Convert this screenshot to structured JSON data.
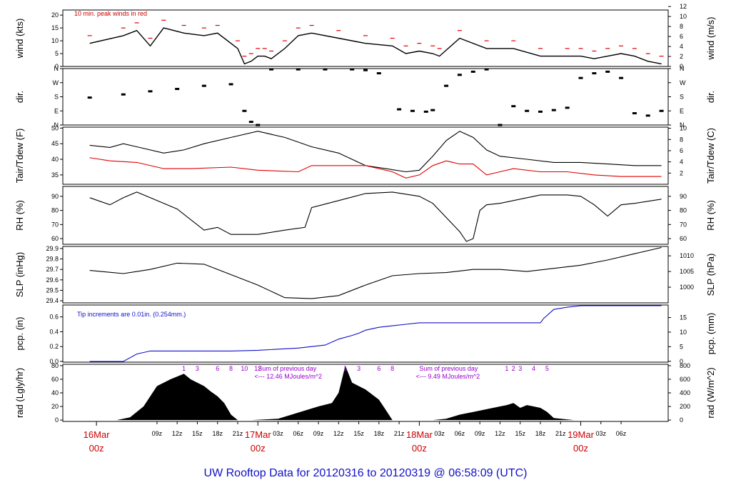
{
  "title": "UW Rooftop Data for 20120316  to  20120319 @ 06:58:09  (UTC)",
  "colors": {
    "black": "#000000",
    "red": "#e00000",
    "blue": "#1010c8",
    "purple": "#9900cc",
    "daylabel": "#cc0000"
  },
  "time_axis": {
    "tick_labels": [
      "09z",
      "12z",
      "15z",
      "18z",
      "21z",
      "03z",
      "06z",
      "09z",
      "12z",
      "15z",
      "18z",
      "21z",
      "03z",
      "06z",
      "09z",
      "12z",
      "15z",
      "18z",
      "21z",
      "03z",
      "06z"
    ],
    "day_labels": [
      {
        "top": "16Mar",
        "bottom": "00z",
        "hour": 0
      },
      {
        "top": "17Mar",
        "bottom": "00z",
        "hour": 24
      },
      {
        "top": "18Mar",
        "bottom": "00z",
        "hour": 48
      },
      {
        "top": "19Mar",
        "bottom": "00z",
        "hour": 72
      }
    ]
  },
  "chart_data": [
    {
      "type": "line",
      "panel": "wind",
      "ylabel_left": "wind (kts)",
      "ylabel_right": "wind (m/s)",
      "left_ticks": [
        0,
        5,
        10,
        15,
        20
      ],
      "right_ticks": [
        0,
        2,
        4,
        6,
        8,
        10,
        12
      ],
      "annotation": "10 min. peak winds in red",
      "series": [
        {
          "name": "wind",
          "color": "#000000"
        },
        {
          "name": "peak",
          "color": "#e00000"
        }
      ],
      "x_hours": [
        -1,
        4,
        6,
        8,
        10,
        13,
        16,
        18,
        21,
        22,
        23,
        24,
        25,
        26,
        28,
        30,
        32,
        36,
        40,
        44,
        46,
        48,
        50,
        51,
        54,
        58,
        62,
        66,
        70,
        72,
        74,
        76,
        78,
        80,
        82,
        84
      ],
      "y": [
        9,
        12,
        14,
        8,
        15,
        13,
        12,
        13,
        7,
        1,
        2,
        4,
        4,
        3,
        7,
        12,
        13,
        11,
        9,
        8,
        5,
        6,
        5,
        4,
        11,
        7,
        7,
        4,
        4,
        4,
        3,
        4,
        5,
        4,
        2,
        1
      ]
    },
    {
      "type": "scatter",
      "panel": "dir",
      "ylabel_left": "dir.",
      "ylabel_right": "dir.",
      "left_ticks": [
        "N",
        "E",
        "S",
        "W",
        "N"
      ],
      "right_ticks": [
        "N",
        "E",
        "S",
        "W",
        "N"
      ],
      "x_hours": [
        -1,
        4,
        8,
        12,
        16,
        20,
        22,
        23,
        24,
        26,
        30,
        34,
        38,
        40,
        42,
        45,
        47,
        49,
        50,
        52,
        54,
        56,
        58,
        60,
        62,
        64,
        66,
        68,
        70,
        72,
        74,
        76,
        78,
        80,
        82,
        84
      ],
      "y": [
        175,
        195,
        215,
        230,
        250,
        260,
        90,
        20,
        0,
        355,
        355,
        355,
        355,
        350,
        330,
        100,
        90,
        85,
        95,
        250,
        320,
        340,
        355,
        0,
        120,
        90,
        85,
        95,
        110,
        300,
        330,
        340,
        300,
        75,
        60,
        90
      ]
    },
    {
      "type": "line",
      "panel": "tair_tdew",
      "ylabel_left": "Tair/Tdew (F)",
      "ylabel_right": "Tair/Tdew (C)",
      "left_ticks": [
        35,
        40,
        45,
        50
      ],
      "right_ticks": [
        2,
        4,
        6,
        8,
        10
      ],
      "series": [
        {
          "name": "Tair",
          "color": "#000000",
          "x_hours": [
            -1,
            2,
            4,
            6,
            10,
            13,
            16,
            20,
            24,
            28,
            32,
            36,
            40,
            43,
            46,
            48,
            50,
            52,
            54,
            56,
            58,
            60,
            64,
            68,
            72,
            76,
            80,
            84
          ],
          "y": [
            44.5,
            43.8,
            45,
            44,
            42,
            43,
            45,
            47,
            49,
            47,
            44,
            42,
            38,
            37,
            36,
            36.5,
            41,
            46,
            49,
            47,
            43,
            41,
            40,
            39,
            39,
            38.5,
            38,
            38
          ]
        },
        {
          "name": "Tdew",
          "color": "#e00000",
          "x_hours": [
            -1,
            2,
            6,
            10,
            14,
            20,
            24,
            30,
            32,
            36,
            40,
            44,
            46,
            48,
            50,
            52,
            54,
            56,
            58,
            60,
            62,
            66,
            70,
            74,
            78,
            80,
            84
          ],
          "y": [
            40.5,
            39.5,
            39,
            37,
            37,
            37.5,
            36.5,
            36,
            38,
            38,
            38,
            36,
            34,
            35,
            38,
            39.5,
            38.5,
            38.5,
            35,
            36,
            37,
            36,
            36,
            35,
            34.5,
            34.5,
            34.5
          ]
        }
      ]
    },
    {
      "type": "line",
      "panel": "rh",
      "ylabel_left": "RH (%)",
      "ylabel_right": "RH (%)",
      "left_ticks": [
        60,
        70,
        80,
        90
      ],
      "right_ticks": [
        60,
        70,
        80,
        90
      ],
      "x_hours": [
        -1,
        2,
        4,
        6,
        8,
        12,
        16,
        18,
        20,
        24,
        28,
        31,
        32,
        36,
        40,
        44,
        48,
        50,
        52,
        54,
        55,
        56,
        57,
        58,
        60,
        66,
        70,
        72,
        74,
        76,
        78,
        80,
        84
      ],
      "y": [
        89,
        84,
        89,
        93,
        89,
        81,
        66,
        68,
        63,
        63,
        66,
        68,
        82,
        87,
        92,
        93,
        90,
        85,
        75,
        65,
        58,
        60,
        80,
        84,
        85,
        91,
        91,
        90,
        84,
        76,
        84,
        85,
        88
      ]
    },
    {
      "type": "line",
      "panel": "slp",
      "ylabel_left": "SLP (inHg)",
      "ylabel_right": "SLP (hPa)",
      "left_ticks": [
        29.4,
        29.5,
        29.6,
        29.7,
        29.8,
        29.9
      ],
      "right_ticks": [
        1000,
        1005,
        1010
      ],
      "x_hours": [
        -1,
        4,
        8,
        12,
        16,
        20,
        24,
        28,
        32,
        36,
        40,
        44,
        48,
        52,
        56,
        60,
        64,
        68,
        72,
        76,
        80,
        84
      ],
      "y": [
        29.69,
        29.66,
        29.7,
        29.76,
        29.75,
        29.65,
        29.55,
        29.43,
        29.42,
        29.45,
        29.55,
        29.64,
        29.66,
        29.67,
        29.7,
        29.7,
        29.68,
        29.71,
        29.74,
        29.79,
        29.85,
        29.91
      ]
    },
    {
      "type": "line",
      "panel": "pcp",
      "ylabel_left": "pcp. (in)",
      "ylabel_right": "pcp. (mm)",
      "left_ticks": [
        0.0,
        0.2,
        0.4,
        0.6
      ],
      "right_ticks": [
        0,
        5,
        10,
        15
      ],
      "annotation": "Tip increments are 0.01in. (0.254mm.)",
      "series": [
        {
          "name": "pcp",
          "color": "#1010c8"
        }
      ],
      "x_hours": [
        -1,
        4,
        6,
        8,
        20,
        24,
        30,
        34,
        36,
        38,
        39,
        40,
        42,
        44,
        46,
        48,
        56,
        62,
        66,
        66.5,
        68,
        70,
        72,
        84
      ],
      "y": [
        0.0,
        0.0,
        0.1,
        0.14,
        0.14,
        0.15,
        0.18,
        0.22,
        0.3,
        0.35,
        0.38,
        0.42,
        0.46,
        0.48,
        0.5,
        0.52,
        0.52,
        0.52,
        0.52,
        0.58,
        0.7,
        0.73,
        0.75,
        0.75
      ]
    },
    {
      "type": "area",
      "panel": "rad",
      "ylabel_left": "rad (Lgly/hr)",
      "ylabel_right": "rad (W/m^2)",
      "left_ticks": [
        0,
        20,
        40,
        60,
        80
      ],
      "right_ticks": [
        0,
        200,
        400,
        600,
        800
      ],
      "annotations": [
        {
          "line1": "Sum of previous day",
          "line2": "<--- 12.46 MJoules/m^2"
        },
        {
          "line1": "Sum of previous day",
          "line2": "<--- 9.49 MJoules/m^2"
        }
      ],
      "hour_markers": [
        {
          "label": "1",
          "hour": 13
        },
        {
          "label": "3",
          "hour": 15
        },
        {
          "label": "6",
          "hour": 18
        },
        {
          "label": "8",
          "hour": 20
        },
        {
          "label": "10",
          "hour": 22
        },
        {
          "label": "12",
          "hour": 24
        },
        {
          "label": "1",
          "hour": 37
        },
        {
          "label": "3",
          "hour": 39
        },
        {
          "label": "6",
          "hour": 42
        },
        {
          "label": "8",
          "hour": 44
        },
        {
          "label": "1",
          "hour": 61
        },
        {
          "label": "2",
          "hour": 62
        },
        {
          "label": "3",
          "hour": 63
        },
        {
          "label": "4",
          "hour": 65
        },
        {
          "label": "5",
          "hour": 67
        }
      ],
      "x_hours": [
        -1,
        3,
        5,
        7,
        9,
        11,
        12,
        13,
        14,
        15,
        16,
        17,
        18,
        19,
        20,
        21,
        23,
        27,
        29,
        31,
        33,
        35,
        36,
        37,
        38,
        39,
        40,
        42,
        43,
        44,
        46,
        50,
        52,
        54,
        56,
        58,
        60,
        61,
        62,
        63,
        64,
        65,
        66,
        67,
        68,
        71
      ],
      "y": [
        0,
        0,
        4,
        20,
        50,
        60,
        64,
        68,
        60,
        55,
        50,
        42,
        35,
        25,
        8,
        0,
        0,
        2,
        8,
        14,
        20,
        25,
        40,
        80,
        55,
        50,
        45,
        30,
        15,
        0,
        0,
        0,
        2,
        8,
        12,
        16,
        20,
        22,
        25,
        18,
        22,
        20,
        18,
        12,
        3,
        0
      ]
    }
  ]
}
